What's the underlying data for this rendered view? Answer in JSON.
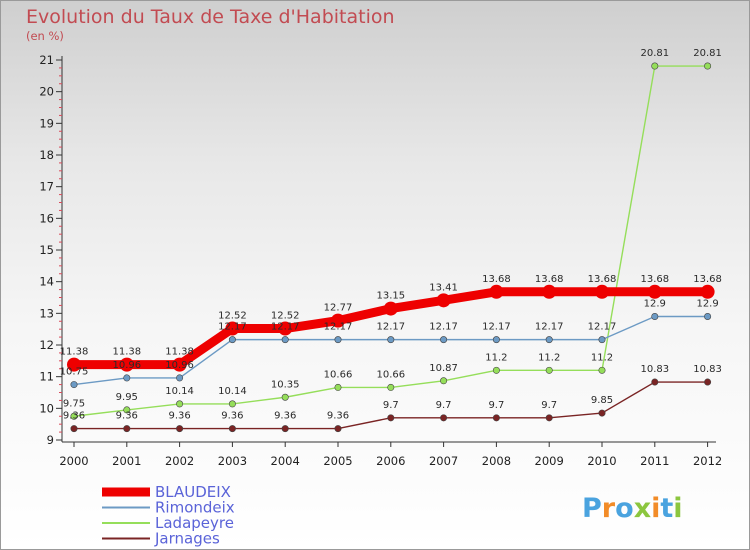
{
  "page": {
    "title": "Evolution du Taux de Taxe d'Habitation",
    "unit": "(en %)"
  },
  "chart_data": {
    "type": "line",
    "title": "Evolution du Taux de Taxe d'Habitation",
    "ylabel": "(en %)",
    "x": [
      "2000",
      "2001",
      "2002",
      "2003",
      "2004",
      "2005",
      "2006",
      "2007",
      "2008",
      "2009",
      "2010",
      "2011",
      "2012"
    ],
    "ylim": [
      9,
      21
    ],
    "yticks": [
      9,
      10,
      11,
      12,
      13,
      14,
      15,
      16,
      17,
      18,
      19,
      20,
      21
    ],
    "legend_position": "bottom-left",
    "series": [
      {
        "name": "BLAUDEIX",
        "color": "#ee0000",
        "values": [
          11.38,
          11.38,
          11.38,
          12.52,
          12.52,
          12.77,
          13.15,
          13.41,
          13.68,
          13.68,
          13.68,
          13.68,
          13.68
        ]
      },
      {
        "name": "Rimondeix",
        "color": "#6c9ac4",
        "values": [
          10.75,
          10.96,
          10.96,
          12.17,
          12.17,
          12.17,
          12.17,
          12.17,
          12.17,
          12.17,
          12.17,
          12.9,
          12.9
        ]
      },
      {
        "name": "Ladapeyre",
        "color": "#95de5a",
        "values": [
          9.75,
          9.95,
          10.14,
          10.14,
          10.35,
          10.66,
          10.66,
          10.87,
          11.2,
          11.2,
          11.2,
          20.81,
          20.81
        ]
      },
      {
        "name": "Jarnages",
        "color": "#7a2424",
        "values": [
          9.36,
          9.36,
          9.36,
          9.36,
          9.36,
          9.36,
          9.7,
          9.7,
          9.7,
          9.7,
          9.85,
          10.83,
          10.83
        ]
      }
    ],
    "data_labels": [
      [
        "11.38",
        "11.38",
        "11.38",
        "12.52",
        "12.52",
        "12.77",
        "13.15",
        "13.41",
        "13.68",
        "13.68",
        "13.68",
        "13.68",
        "13.68"
      ],
      [
        "10.75",
        "10.96",
        "10.96",
        "12.17",
        "12.17",
        "12.17",
        "12.17",
        "12.17",
        "12.17",
        "12.17",
        "12.17",
        "12.9",
        "12.9"
      ],
      [
        "9.75",
        "9.95",
        "10.14",
        "10.14",
        "10.35",
        "10.66",
        "10.66",
        "10.87",
        "11.2",
        "11.2",
        "11.2",
        "20.81",
        "20.81"
      ],
      [
        "9.36",
        "9.36",
        "9.36",
        "9.36",
        "9.36",
        "9.36",
        "9.7",
        "9.7",
        "9.7",
        "9.7",
        "9.85",
        "10.83",
        "10.83"
      ]
    ]
  },
  "logo": {
    "text": "Proxiti",
    "letters": [
      "P",
      "r",
      "o",
      "x",
      "i",
      "t",
      "i"
    ],
    "colors": [
      "#4aa3df",
      "#f28c28",
      "#4aa3df",
      "#8cc63f",
      "#f28c28",
      "#4aa3df",
      "#8cc63f"
    ]
  }
}
